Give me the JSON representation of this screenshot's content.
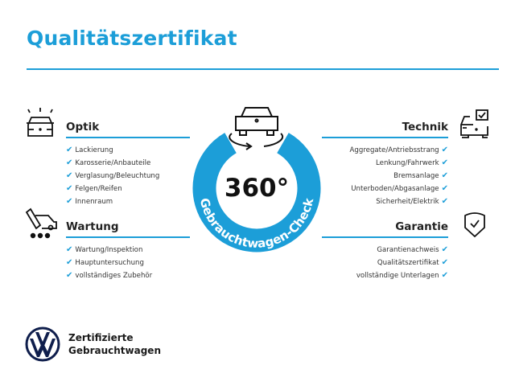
{
  "header": {
    "title": "Qualitätszertifikat"
  },
  "badge": {
    "number": "360°",
    "arc_text": "Gebrauchtwagen-Check"
  },
  "sections": {
    "optik": {
      "title": "Optik",
      "icon": "car-lights-icon",
      "items": [
        "Lackierung",
        "Karosserie/Anbauteile",
        "Verglasung/Beleuchtung",
        "Felgen/Reifen",
        "Innenraum"
      ]
    },
    "wartung": {
      "title": "Wartung",
      "icon": "service-tools-icon",
      "items": [
        "Wartung/Inspektion",
        "Hauptuntersuchung",
        "vollständiges Zubehör"
      ]
    },
    "technik": {
      "title": "Technik",
      "icon": "car-checkbox-icon",
      "items": [
        "Aggregate/Antriebsstrang",
        "Lenkung/Fahrwerk",
        "Bremsanlage",
        "Unterboden/Abgasanlage",
        "Sicherheit/Elektrik"
      ]
    },
    "garantie": {
      "title": "Garantie",
      "icon": "shield-check-icon",
      "items": [
        "Garantienachweis",
        "Qualitätszertifikat",
        "vollständige Unterlagen"
      ]
    }
  },
  "check_mark": "✔",
  "footer": {
    "line1": "Zertifizierte",
    "line2": "Gebrauchtwagen",
    "logo": "vw-logo"
  },
  "colors": {
    "accent": "#1c9ed8",
    "text": "#1b1b1b"
  }
}
